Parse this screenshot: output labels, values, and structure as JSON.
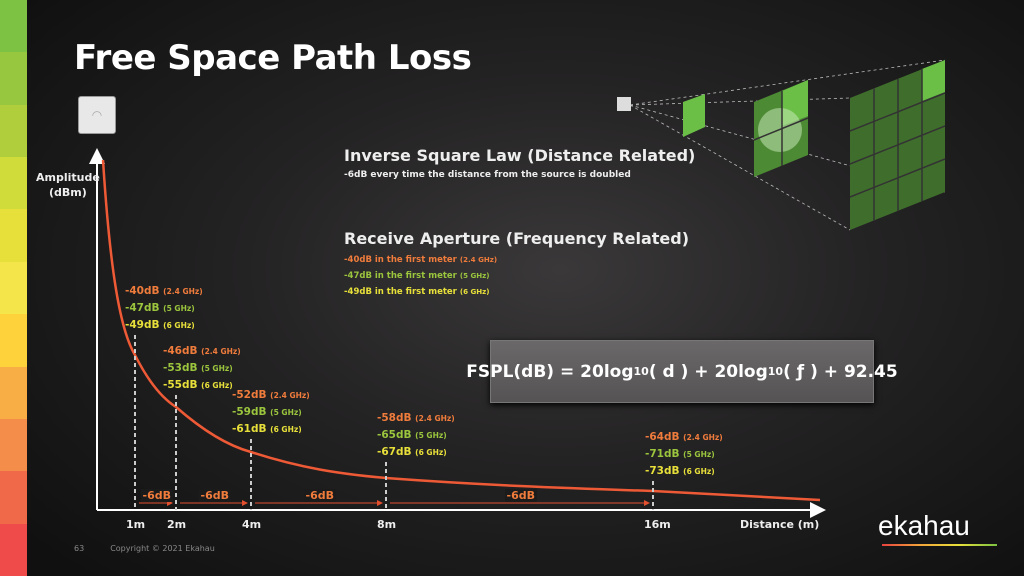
{
  "title": "Free Space Path Loss",
  "stripe_colors": [
    "#7dc242",
    "#97c73e",
    "#b0cd3c",
    "#cfdc3a",
    "#e8e03a",
    "#f3e54a",
    "#fdd23a",
    "#f9ad45",
    "#f58d4a",
    "#f06a4a",
    "#ef4b4b"
  ],
  "inverse": {
    "heading": "Inverse Square Law (Distance Related)",
    "sub": "-6dB every time the distance from the source is doubled"
  },
  "aperture": {
    "heading": "Receive Aperture (Frequency Related)",
    "lines": [
      {
        "value": "-40dB in the first meter",
        "band": "(2.4 GHz)"
      },
      {
        "value": "-47dB in the first meter",
        "band": "(5 GHz)"
      },
      {
        "value": "-49dB in the first meter",
        "band": "(6 GHz)"
      }
    ]
  },
  "formula": {
    "lhs": "FSPL(dB) = 20log",
    "sub1": "10",
    "mid": "( d ) + 20log",
    "sub2": "10",
    "rhs": "( ƒ ) + 92.45"
  },
  "chart": {
    "ylabel": "Amplitude",
    "yunit": "(dBm)",
    "xlabel": "Distance (m)",
    "ticks": [
      "1m",
      "2m",
      "4m",
      "8m",
      "16m"
    ],
    "step_label": "-6dB",
    "points": [
      {
        "d": "-40dB",
        "d_band": "(2.4 GHz)",
        "e": "-47dB",
        "e_band": "(5 GHz)",
        "f": "-49dB",
        "f_band": "(6 GHz)"
      },
      {
        "d": "-46dB",
        "d_band": "(2.4 GHz)",
        "e": "-53dB",
        "e_band": "(5 GHz)",
        "f": "-55dB",
        "f_band": "(6 GHz)"
      },
      {
        "d": "-52dB",
        "d_band": "(2.4 GHz)",
        "e": "-59dB",
        "e_band": "(5 GHz)",
        "f": "-61dB",
        "f_band": "(6 GHz)"
      },
      {
        "d": "-58dB",
        "d_band": "(2.4 GHz)",
        "e": "-65dB",
        "e_band": "(5 GHz)",
        "f": "-67dB",
        "f_band": "(6 GHz)"
      },
      {
        "d": "-64dB",
        "d_band": "(2.4 GHz)",
        "e": "-71dB",
        "e_band": "(5 GHz)",
        "f": "-73dB",
        "f_band": "(6 GHz)"
      }
    ]
  },
  "footer": {
    "page": "63",
    "copyright": "Copyright © 2021 Ekahau"
  },
  "logo": "ekahau"
}
